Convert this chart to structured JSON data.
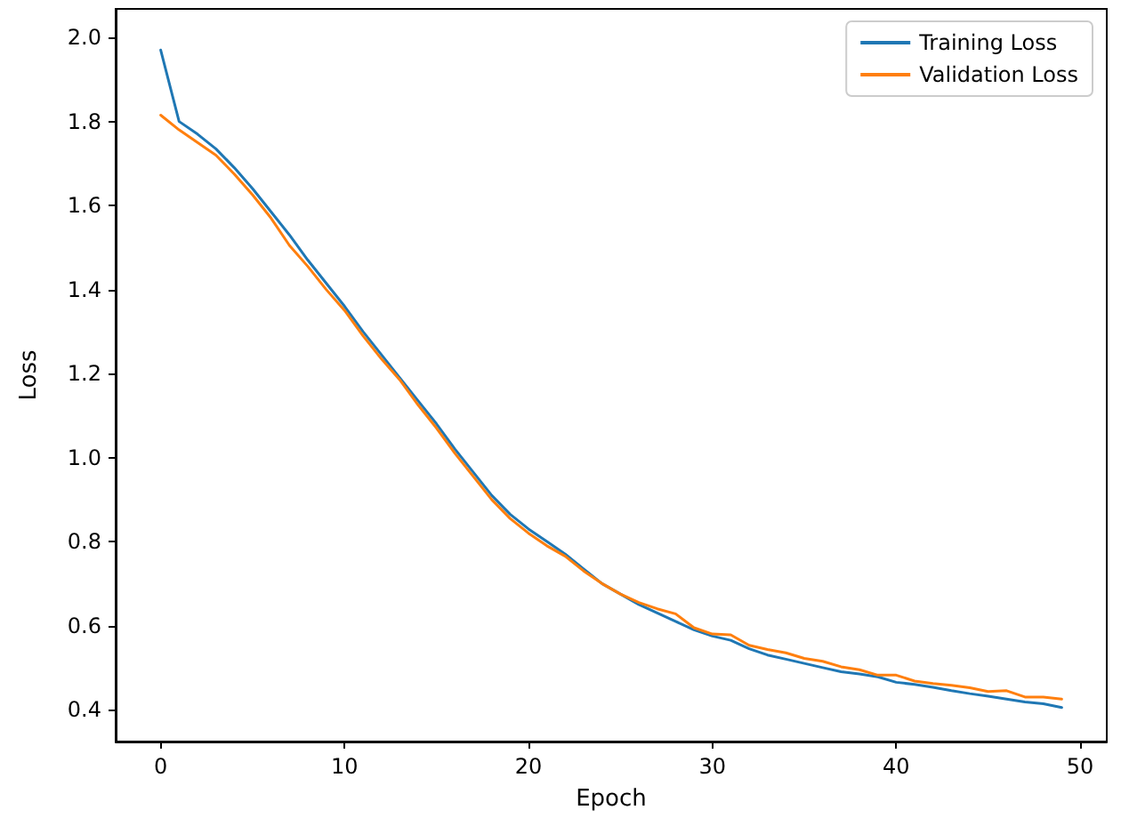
{
  "chart_data": {
    "type": "line",
    "xlabel": "Epoch",
    "ylabel": "Loss",
    "x": [
      0,
      1,
      2,
      3,
      4,
      5,
      6,
      7,
      8,
      9,
      10,
      11,
      12,
      13,
      14,
      15,
      16,
      17,
      18,
      19,
      20,
      21,
      22,
      23,
      24,
      25,
      26,
      27,
      28,
      29,
      30,
      31,
      32,
      33,
      34,
      35,
      36,
      37,
      38,
      39,
      40,
      41,
      42,
      43,
      44,
      45,
      46,
      47,
      48,
      49
    ],
    "series": [
      {
        "name": "Training Loss",
        "color": "#1f77b4",
        "values": [
          1.97,
          1.8,
          1.77,
          1.735,
          1.69,
          1.64,
          1.585,
          1.53,
          1.47,
          1.415,
          1.36,
          1.3,
          1.245,
          1.19,
          1.135,
          1.08,
          1.02,
          0.965,
          0.91,
          0.865,
          0.83,
          0.8,
          0.77,
          0.735,
          0.7,
          0.675,
          0.65,
          0.63,
          0.61,
          0.59,
          0.575,
          0.565,
          0.545,
          0.53,
          0.52,
          0.51,
          0.5,
          0.49,
          0.485,
          0.478,
          0.465,
          0.46,
          0.453,
          0.445,
          0.438,
          0.432,
          0.425,
          0.418,
          0.414,
          0.405
        ]
      },
      {
        "name": "Validation Loss",
        "color": "#ff7f0e",
        "values": [
          1.815,
          1.78,
          1.75,
          1.72,
          1.675,
          1.625,
          1.57,
          1.505,
          1.455,
          1.4,
          1.35,
          1.29,
          1.235,
          1.185,
          1.125,
          1.07,
          1.01,
          0.955,
          0.9,
          0.855,
          0.82,
          0.79,
          0.765,
          0.73,
          0.7,
          0.675,
          0.655,
          0.64,
          0.628,
          0.595,
          0.58,
          0.578,
          0.553,
          0.543,
          0.535,
          0.522,
          0.515,
          0.502,
          0.495,
          0.482,
          0.482,
          0.468,
          0.462,
          0.458,
          0.452,
          0.443,
          0.445,
          0.43,
          0.43,
          0.425
        ]
      }
    ],
    "xlim": [
      -2.45,
      51.45
    ],
    "xticks": [
      0,
      10,
      20,
      30,
      40,
      50
    ],
    "ylim": [
      0.324,
      2.068
    ],
    "yticks": [
      0.4,
      0.6,
      0.8,
      {
        "value": 1.0,
        "label": "1.0"
      },
      1.2,
      1.4,
      1.6,
      1.8,
      {
        "value": 2.0,
        "label": "2.0"
      }
    ],
    "grid": false,
    "legend": "top right",
    "marker": "none",
    "line_style": "solid"
  }
}
